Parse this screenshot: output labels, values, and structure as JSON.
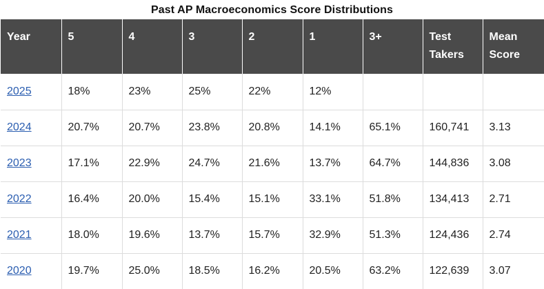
{
  "title": "Past AP Macroeconomics Score Distributions",
  "columns": [
    "Year",
    "5",
    "4",
    "3",
    "2",
    "1",
    "3+",
    "Test Takers",
    "Mean Score"
  ],
  "rows": [
    {
      "year": "2025",
      "s5": "18%",
      "s4": "23%",
      "s3": "25%",
      "s2": "22%",
      "s1": "12%",
      "s3plus": "",
      "test_takers": "",
      "mean": ""
    },
    {
      "year": "2024",
      "s5": "20.7%",
      "s4": "20.7%",
      "s3": "23.8%",
      "s2": "20.8%",
      "s1": "14.1%",
      "s3plus": "65.1%",
      "test_takers": "160,741",
      "mean": "3.13"
    },
    {
      "year": "2023",
      "s5": "17.1%",
      "s4": "22.9%",
      "s3": "24.7%",
      "s2": "21.6%",
      "s1": "13.7%",
      "s3plus": "64.7%",
      "test_takers": "144,836",
      "mean": "3.08"
    },
    {
      "year": "2022",
      "s5": "16.4%",
      "s4": "20.0%",
      "s3": "15.4%",
      "s2": "15.1%",
      "s1": "33.1%",
      "s3plus": "51.8%",
      "test_takers": "134,413",
      "mean": "2.71"
    },
    {
      "year": "2021",
      "s5": "18.0%",
      "s4": "19.6%",
      "s3": "13.7%",
      "s2": "15.7%",
      "s1": "32.9%",
      "s3plus": "51.3%",
      "test_takers": "124,436",
      "mean": "2.74"
    },
    {
      "year": "2020",
      "s5": "19.7%",
      "s4": "25.0%",
      "s3": "18.5%",
      "s2": "16.2%",
      "s1": "20.5%",
      "s3plus": "63.2%",
      "test_takers": "122,639",
      "mean": "3.07"
    }
  ],
  "colors": {
    "header_bg": "#4a4a4a",
    "header_text": "#ffffff",
    "link": "#2a5db0",
    "grid": "#dcdcdc"
  }
}
